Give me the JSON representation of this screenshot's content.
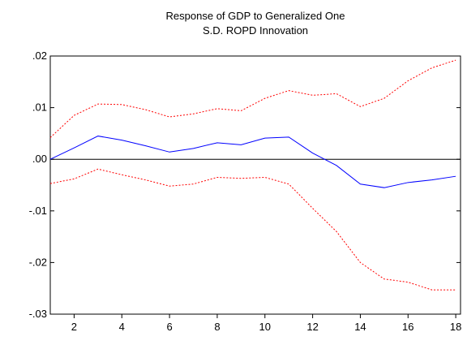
{
  "chart_data": {
    "type": "line",
    "title": [
      "Response of GDP to Generalized One",
      "S.D. ROPD Innovation"
    ],
    "x": [
      1,
      2,
      3,
      4,
      5,
      6,
      7,
      8,
      9,
      10,
      11,
      12,
      13,
      14,
      15,
      16,
      17,
      18
    ],
    "series": [
      {
        "color": "#0000ff",
        "dash": false,
        "values": [
          0.0,
          0.0022,
          0.0045,
          0.0037,
          0.0026,
          0.0014,
          0.0021,
          0.0032,
          0.0028,
          0.0041,
          0.0043,
          0.0012,
          -0.0012,
          -0.0048,
          -0.0055,
          -0.0045,
          -0.004,
          -0.0033
        ]
      },
      {
        "color": "#ff0000",
        "dash": true,
        "values": [
          0.0042,
          0.0085,
          0.0107,
          0.0106,
          0.0096,
          0.0082,
          0.0088,
          0.0098,
          0.0094,
          0.0118,
          0.0133,
          0.0124,
          0.0127,
          0.0102,
          0.0118,
          0.0152,
          0.0177,
          0.0192
        ]
      },
      {
        "color": "#ff0000",
        "dash": true,
        "values": [
          -0.0047,
          -0.0038,
          -0.0019,
          -0.003,
          -0.004,
          -0.0052,
          -0.0048,
          -0.0035,
          -0.0037,
          -0.0035,
          -0.0048,
          -0.0095,
          -0.014,
          -0.02,
          -0.0232,
          -0.0238,
          -0.0253,
          -0.0253
        ]
      }
    ],
    "xlim": [
      1,
      18.2
    ],
    "xticks": [
      2,
      4,
      6,
      8,
      10,
      12,
      14,
      16,
      18
    ],
    "ylim": [
      -0.03,
      0.02
    ],
    "yticks": [
      {
        "value": 0.02,
        "label": ".02"
      },
      {
        "value": 0.01,
        "label": ".01"
      },
      {
        "value": 0,
        "label": ".00"
      },
      {
        "value": -0.01,
        "label": "-.01"
      },
      {
        "value": -0.02,
        "label": "-.02"
      },
      {
        "value": -0.03,
        "label": "-.03"
      }
    ]
  }
}
